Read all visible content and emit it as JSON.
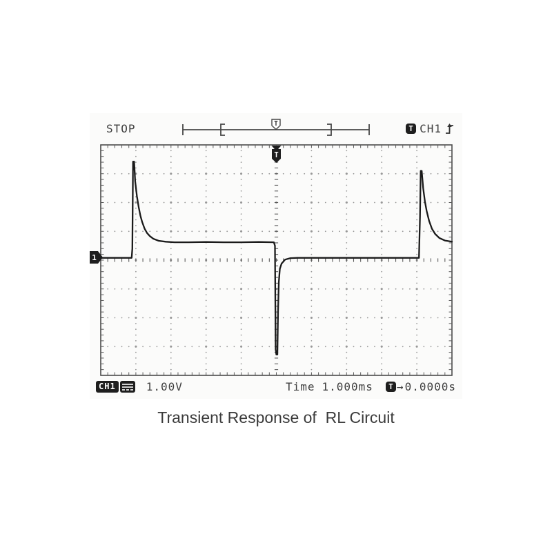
{
  "scope": {
    "acquisition_status": "STOP",
    "trigger_readout": {
      "trigger_letter": "T",
      "channel": "CH1",
      "slope": "rising-edge"
    },
    "channel_marker": "1",
    "grid_trigger_letter": "T",
    "topbar_trigger_letter": "T",
    "bottom": {
      "channel_label": "CH1",
      "volts_per_div": "1.00V",
      "time_label": "Time",
      "time_per_div": "1.000ms",
      "trigger_letter": "T",
      "trigger_arrow": "→",
      "trigger_position": "0.0000s"
    }
  },
  "caption": "Transient Response of  RL Circuit",
  "chart_data": {
    "type": "line",
    "title": "Oscilloscope trace: inductor voltage transient of RL circuit",
    "divisions_x": 10,
    "divisions_y": 8,
    "time_per_div_ms": 1.0,
    "volts_per_div_V": 1.0,
    "trigger_position_div_x": 5,
    "x_unit": "divisions",
    "y_unit": "divisions (relative to center graticule)",
    "features": [
      "positive spike to ~+3.4 div at x=0.9 div decaying to +0.6 div",
      "negative spike to ~-3.3 div at x=5.0 div recovering to ~0 div",
      "positive spike to ~+3.1 div at x=9.1 div decaying toward +0.6 div"
    ],
    "series": [
      {
        "name": "CH1",
        "points": [
          [
            0,
            0.08
          ],
          [
            0.3,
            0.08
          ],
          [
            0.6,
            0.08
          ],
          [
            0.8,
            0.08
          ],
          [
            0.88,
            0.08
          ],
          [
            0.9,
            0.4
          ],
          [
            0.92,
            3.42
          ],
          [
            0.95,
            3.42
          ],
          [
            0.98,
            2.74
          ],
          [
            1.03,
            2.22
          ],
          [
            1.08,
            1.84
          ],
          [
            1.13,
            1.54
          ],
          [
            1.18,
            1.32
          ],
          [
            1.25,
            1.09
          ],
          [
            1.32,
            0.94
          ],
          [
            1.4,
            0.83
          ],
          [
            1.5,
            0.74
          ],
          [
            1.65,
            0.67
          ],
          [
            1.85,
            0.64
          ],
          [
            2.1,
            0.62
          ],
          [
            2.5,
            0.62
          ],
          [
            3.0,
            0.63
          ],
          [
            3.5,
            0.62
          ],
          [
            4.0,
            0.62
          ],
          [
            4.5,
            0.63
          ],
          [
            4.93,
            0.62
          ],
          [
            4.96,
            0.5
          ],
          [
            4.98,
            -3.1
          ],
          [
            5.0,
            -3.28
          ],
          [
            5.03,
            -3.28
          ],
          [
            5.05,
            -1.75
          ],
          [
            5.07,
            -0.75
          ],
          [
            5.1,
            -0.3
          ],
          [
            5.15,
            -0.12
          ],
          [
            5.25,
            0.02
          ],
          [
            5.4,
            0.07
          ],
          [
            5.6,
            0.08
          ],
          [
            6.0,
            0.08
          ],
          [
            6.5,
            0.08
          ],
          [
            7.0,
            0.08
          ],
          [
            7.5,
            0.08
          ],
          [
            8.0,
            0.08
          ],
          [
            8.5,
            0.08
          ],
          [
            9.0,
            0.08
          ],
          [
            9.06,
            0.08
          ],
          [
            9.09,
            1.5
          ],
          [
            9.11,
            3.1
          ],
          [
            9.14,
            3.1
          ],
          [
            9.18,
            2.5
          ],
          [
            9.23,
            2.04
          ],
          [
            9.28,
            1.7
          ],
          [
            9.35,
            1.36
          ],
          [
            9.43,
            1.09
          ],
          [
            9.52,
            0.91
          ],
          [
            9.64,
            0.77
          ],
          [
            9.8,
            0.68
          ],
          [
            10,
            0.64
          ]
        ]
      }
    ]
  },
  "colors": {
    "trace": "#1a1a1a",
    "graticule_dot": "#989898",
    "graticule_tick": "#5a5a5a",
    "border": "#4a4a4a",
    "marker_fill": "#1e1e1e",
    "scope_text": "#3f3f3f"
  }
}
